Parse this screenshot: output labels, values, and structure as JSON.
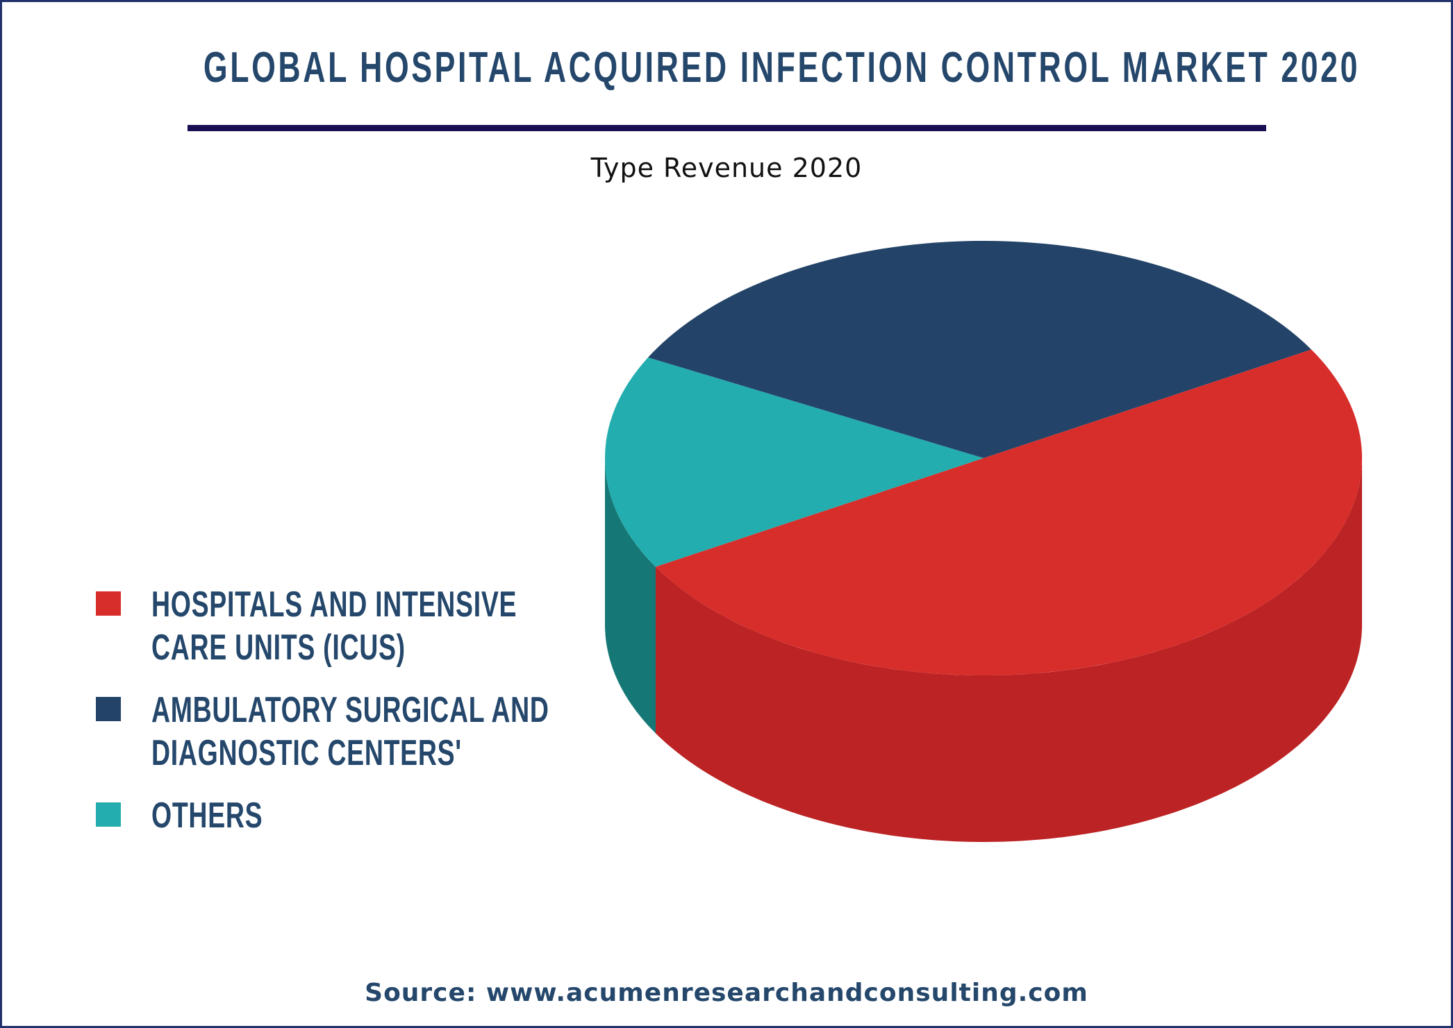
{
  "header": {
    "title": "GLOBAL HOSPITAL ACQUIRED INFECTION CONTROL MARKET 2020",
    "subtitle": "Type Revenue 2020"
  },
  "footer": {
    "source": "Source: www.acumenresearchandconsulting.com"
  },
  "chart_data": {
    "type": "pie",
    "style": "3d",
    "title": "GLOBAL HOSPITAL ACQUIRED INFECTION CONTROL MARKET 2020",
    "subtitle": "Type Revenue 2020",
    "unit": "percent (estimated from slice angles)",
    "legend_position": "left",
    "slices": [
      {
        "label": "HOSPITALS AND INTENSIVE\nCARE UNITS (ICUS)",
        "value": 50,
        "color": "#d82e2b",
        "side_color": "#bc2324"
      },
      {
        "label": "AMBULATORY SURGICAL AND\nDIAGNOSTIC CENTERS'",
        "value": 34,
        "color": "#234468",
        "side_color": "#1d3955"
      },
      {
        "label": "OTHERS",
        "value": 16,
        "color": "#23adae",
        "side_color": "#167876"
      }
    ]
  }
}
